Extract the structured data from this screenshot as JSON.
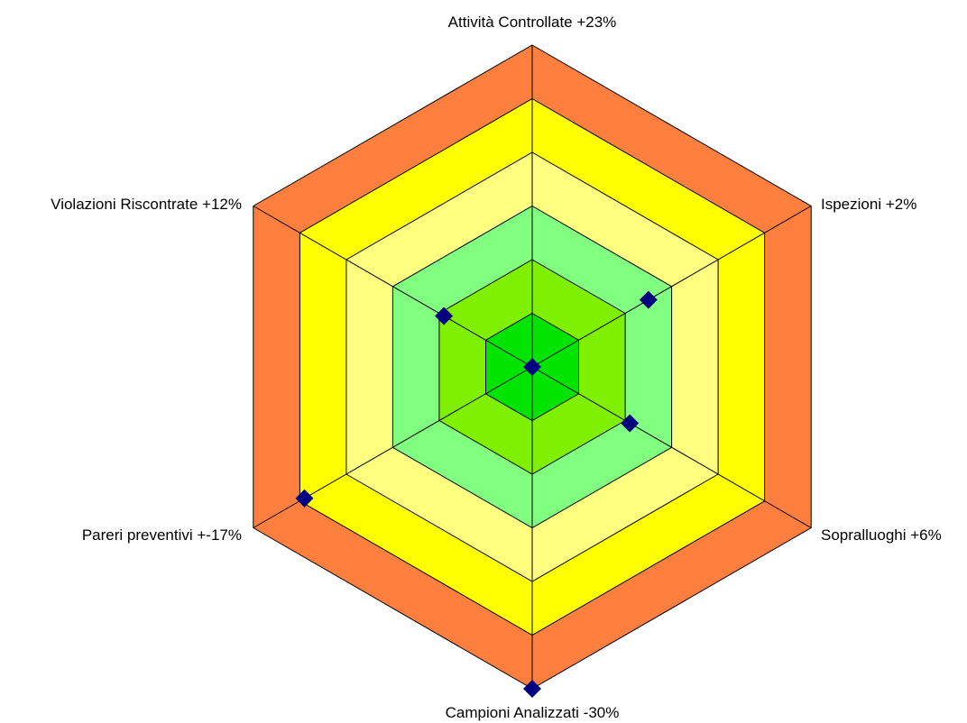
{
  "chart_data": {
    "type": "radar",
    "title": "",
    "axes": [
      {
        "label": "Attività Controllate +23%",
        "value": 0
      },
      {
        "label": "Ispezioni +2%",
        "value": 2.5
      },
      {
        "label": "Sopralluoghi +6%",
        "value": 2.1
      },
      {
        "label": "Campioni Analizzati -30%",
        "value": 6
      },
      {
        "label": "Pareri preventivi +-17%",
        "value": 4.9
      },
      {
        "label": "Violazioni Riscontrate +12%",
        "value": 1.9
      }
    ],
    "rings": 6,
    "range": [
      0,
      6
    ],
    "band_colors": [
      "#00e400",
      "#7ff000",
      "#80ff80",
      "#ffff80",
      "#ffff00",
      "#ff7f3f"
    ],
    "marker_color": "#000080",
    "marker_shape": "diamond",
    "legend": "none",
    "grid": true
  }
}
